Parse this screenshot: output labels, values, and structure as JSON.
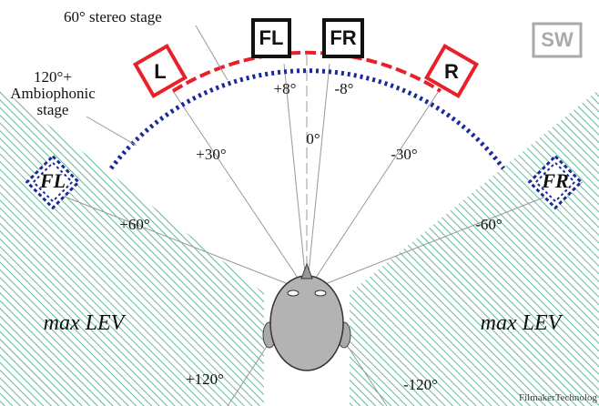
{
  "annotations": {
    "stereo_stage": "60° stereo stage",
    "ambiophonic_stage": [
      "120°+",
      "Ambiophonic",
      "stage"
    ]
  },
  "stereo_speakers": [
    "L",
    "R"
  ],
  "center_speakers": [
    "FL",
    "FR"
  ],
  "subwoofer": "SW",
  "ambio_speakers": [
    "FL",
    "FR"
  ],
  "angles": [
    "+8°",
    "-8°",
    "0°",
    "+30°",
    "-30°",
    "+60°",
    "-60°",
    "+120°",
    "-120°"
  ],
  "zones": [
    "max LEV",
    "max LEV"
  ],
  "watermark": "FilmakerTechnolog"
}
